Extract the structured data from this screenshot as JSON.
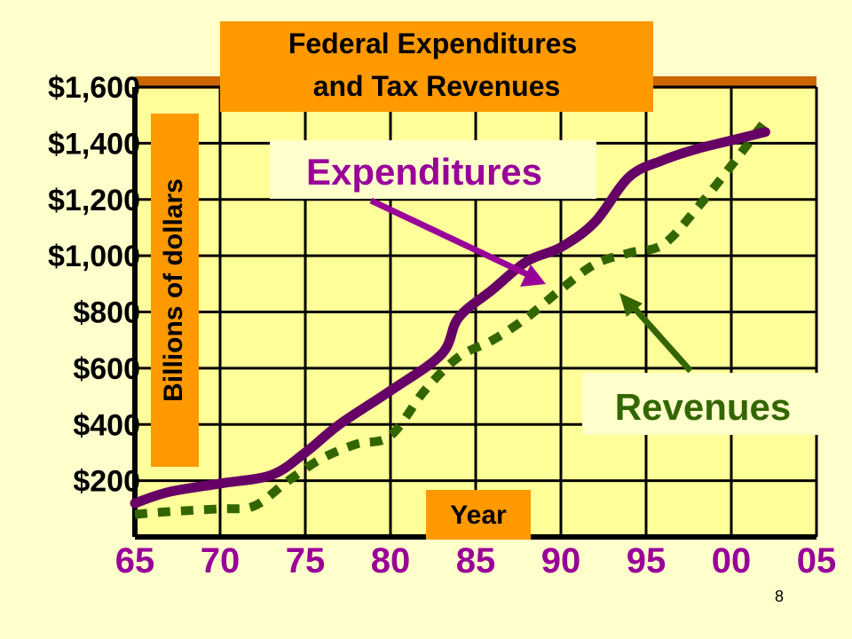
{
  "chart_data": {
    "type": "line",
    "title": "Federal Expenditures and Tax Revenues",
    "title_lines": [
      "Federal Expenditures",
      "and Tax Revenues"
    ],
    "ylabel": "Billions of dollars",
    "xlabel": "Year",
    "y_ticks": [
      {
        "value": 200,
        "label": "$200"
      },
      {
        "value": 400,
        "label": "$400"
      },
      {
        "value": 600,
        "label": "$600"
      },
      {
        "value": 800,
        "label": "$800"
      },
      {
        "value": 1000,
        "label": "$1,000"
      },
      {
        "value": 1200,
        "label": "$1,200"
      },
      {
        "value": 1400,
        "label": "$1,400"
      },
      {
        "value": 1600,
        "label": "$1,600"
      }
    ],
    "x_ticks": [
      {
        "value": 1965,
        "label": "65"
      },
      {
        "value": 1970,
        "label": "70"
      },
      {
        "value": 1975,
        "label": "75"
      },
      {
        "value": 1980,
        "label": "80"
      },
      {
        "value": 1985,
        "label": "85"
      },
      {
        "value": 1990,
        "label": "90"
      },
      {
        "value": 1995,
        "label": "95"
      },
      {
        "value": 2000,
        "label": "00"
      },
      {
        "value": 2005,
        "label": "05"
      }
    ],
    "xlim": [
      1965,
      2005
    ],
    "ylim": [
      0,
      1600
    ],
    "grid": true,
    "series": [
      {
        "name": "Expenditures",
        "color": "#660066",
        "style": "solid",
        "x": [
          1965,
          1967,
          1970,
          1973,
          1975,
          1977,
          1980,
          1983,
          1984,
          1986,
          1988,
          1990,
          1992,
          1994,
          1996,
          1998,
          2000,
          2002
        ],
        "y": [
          120,
          160,
          190,
          220,
          300,
          400,
          520,
          650,
          780,
          880,
          980,
          1030,
          1120,
          1280,
          1340,
          1380,
          1410,
          1440
        ]
      },
      {
        "name": "Revenues",
        "color": "#336600",
        "style": "dashed",
        "x": [
          1965,
          1967,
          1970,
          1972,
          1974,
          1976,
          1978,
          1980,
          1982,
          1984,
          1986,
          1988,
          1990,
          1992,
          1994,
          1996,
          1998,
          2000,
          2002
        ],
        "y": [
          80,
          90,
          100,
          110,
          200,
          280,
          330,
          360,
          520,
          640,
          700,
          780,
          880,
          970,
          1010,
          1040,
          1170,
          1320,
          1480
        ]
      }
    ],
    "annotations": [
      "Expenditures",
      "Revenues"
    ]
  },
  "slide": {
    "page_number": "8"
  },
  "colors": {
    "background": "#ffffcc",
    "plot_area": "#ffff99",
    "label_box": "#ff9900",
    "top_border": "#cc6600",
    "grid": "#000000",
    "expenditures": "#660066",
    "revenues": "#336600",
    "arrow_exp": "#990099",
    "text_exp": "#990099",
    "text_rev": "#336600"
  }
}
